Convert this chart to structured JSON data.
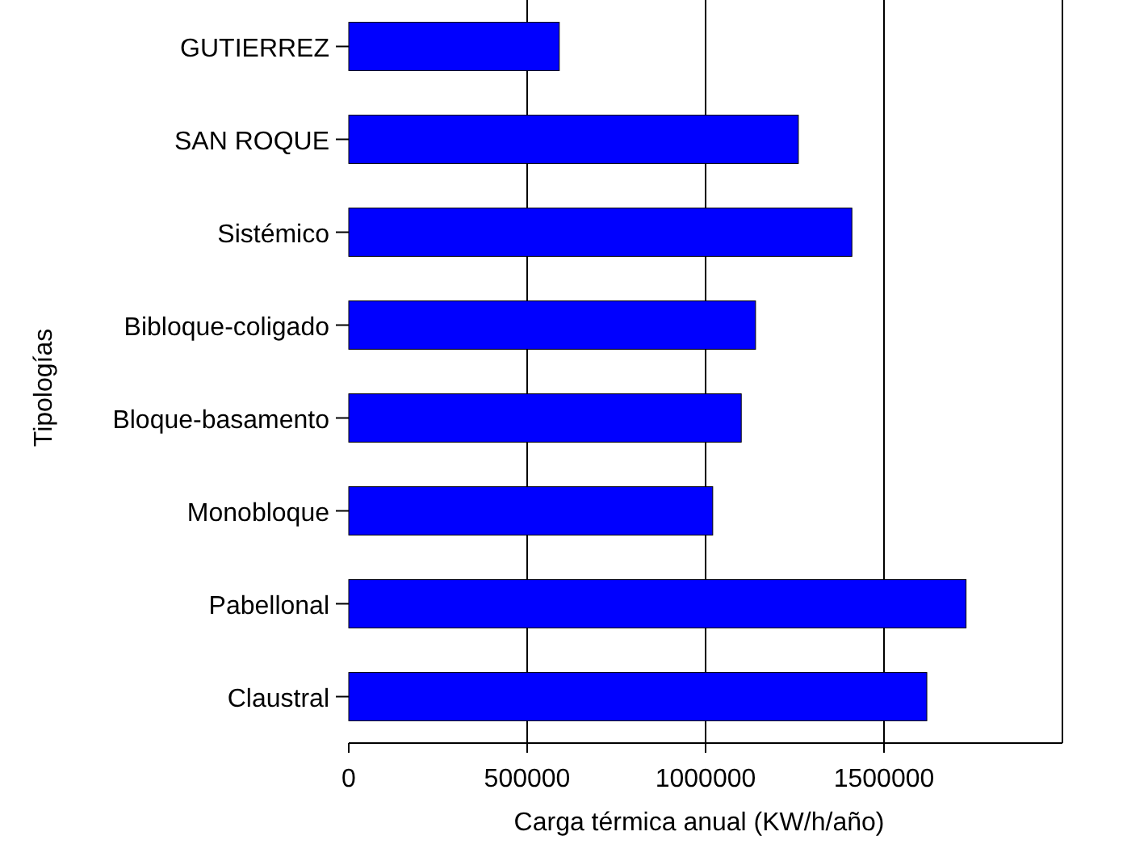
{
  "chart_data": {
    "type": "bar",
    "orientation": "horizontal",
    "xlabel": "Carga térmica anual (KW/h/año)",
    "ylabel": "Tipologías",
    "categories": [
      "GUTIERREZ",
      "SAN ROQUE",
      "Sistémico",
      "Bibloque-coligado",
      "Bloque-basamento",
      "Monobloque",
      "Pabellonal",
      "Claustral"
    ],
    "values": [
      590000,
      1260000,
      1410000,
      1140000,
      1100000,
      1020000,
      1730000,
      1620000
    ],
    "color": "#0000ff",
    "xlim": [
      0,
      2000000
    ],
    "xticks": [
      0,
      500000,
      1000000,
      1500000
    ],
    "grid": "x"
  }
}
